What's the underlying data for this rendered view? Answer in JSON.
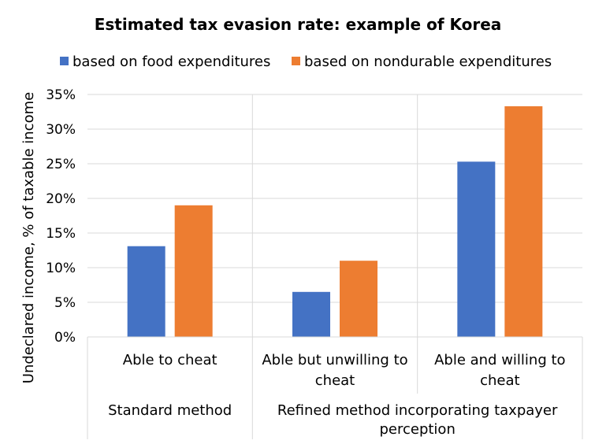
{
  "chart_data": {
    "type": "bar",
    "title": "Estimated tax evasion rate: example of Korea",
    "ylabel": "Undeclared income,  % of taxable income",
    "xlabel": "",
    "ylim": [
      0,
      35
    ],
    "yticks": [
      "0%",
      "5%",
      "10%",
      "15%",
      "20%",
      "25%",
      "30%",
      "35%"
    ],
    "grid": true,
    "legend_position": "top",
    "categories": [
      {
        "lines": [
          "Able to cheat"
        ]
      },
      {
        "lines": [
          "Able but unwilling to",
          "cheat"
        ]
      },
      {
        "lines": [
          "Able and willing to",
          "cheat"
        ]
      }
    ],
    "groups": [
      {
        "lines": [
          "Standard method"
        ],
        "span": [
          0,
          0
        ]
      },
      {
        "lines": [
          "Refined method incorporating taxpayer",
          "perception"
        ],
        "span": [
          1,
          2
        ]
      }
    ],
    "series": [
      {
        "name": "based on food expenditures",
        "color": "#4472C4",
        "values": [
          13.1,
          6.5,
          25.3
        ]
      },
      {
        "name": "based on nondurable expenditures",
        "color": "#ED7D31",
        "values": [
          19.0,
          11.0,
          33.3
        ]
      }
    ]
  }
}
